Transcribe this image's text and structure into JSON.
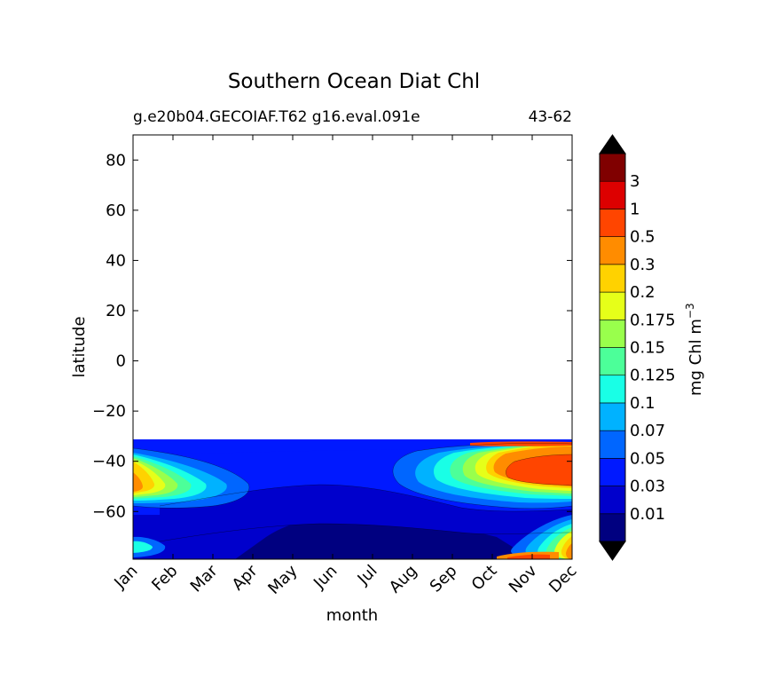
{
  "chart_data": {
    "type": "heatmap",
    "title": "Southern Ocean Diat Chl",
    "subtitle_left": "g.e20b04.GECOIAF.T62 g16.eval.091e",
    "subtitle_right": "43-62",
    "xlabel": "month",
    "ylabel": "latitude",
    "x_ticks": [
      "Jan",
      "Feb",
      "Mar",
      "Apr",
      "May",
      "Jun",
      "Jul",
      "Aug",
      "Sep",
      "Oct",
      "Nov",
      "Dec"
    ],
    "y_ticks": [
      80,
      60,
      40,
      20,
      0,
      -20,
      -40,
      -60
    ],
    "y_tick_labels": [
      "80",
      "60",
      "40",
      "20",
      "0",
      "−20",
      "−40",
      "−60"
    ],
    "ylim": [
      -79,
      90
    ],
    "data_lat_range": [
      -79,
      -31
    ],
    "colorbar": {
      "label": "mg Chl m",
      "label_superscript": "−3",
      "extend": "both",
      "under_color": "#000000",
      "over_color": "#000000",
      "bin_colors": [
        "#000080",
        "#0000cc",
        "#0019ff",
        "#0066ff",
        "#00b2ff",
        "#19ffe6",
        "#4cff99",
        "#99ff4c",
        "#e6ff19",
        "#ffd200",
        "#ff8c00",
        "#ff4500",
        "#dd0000",
        "#800000"
      ],
      "levels": [
        "0.01",
        "0.03",
        "0.05",
        "0.07",
        "0.1",
        "0.125",
        "0.15",
        "0.175",
        "0.2",
        "0.3",
        "0.5",
        "1",
        "3"
      ]
    }
  }
}
